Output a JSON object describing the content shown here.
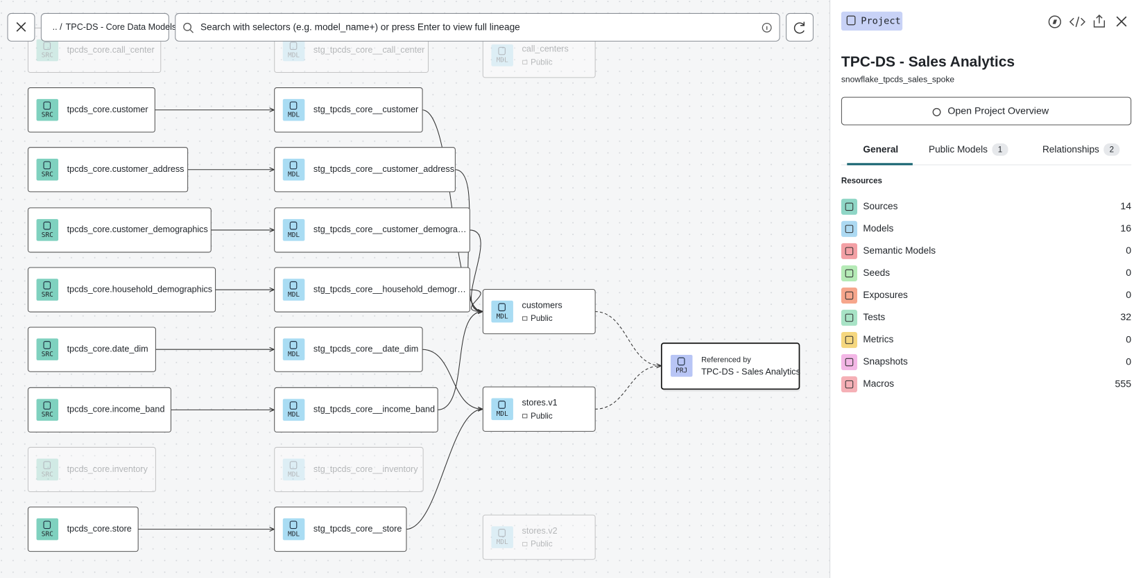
{
  "toolbar": {
    "breadcrumb_parent": "..",
    "breadcrumb_separator": "/",
    "breadcrumb_current": "TPC-DS - Core Data Models",
    "search_placeholder": "Search with selectors (e.g. model_name+) or press Enter to view full lineage"
  },
  "lineage": {
    "sources": [
      {
        "badge": "SRC",
        "label": "tpcds_core.call_center",
        "faded": true
      },
      {
        "badge": "SRC",
        "label": "tpcds_core.customer"
      },
      {
        "badge": "SRC",
        "label": "tpcds_core.customer_address"
      },
      {
        "badge": "SRC",
        "label": "tpcds_core.customer_demographics"
      },
      {
        "badge": "SRC",
        "label": "tpcds_core.household_demographics"
      },
      {
        "badge": "SRC",
        "label": "tpcds_core.date_dim"
      },
      {
        "badge": "SRC",
        "label": "tpcds_core.income_band"
      },
      {
        "badge": "SRC",
        "label": "tpcds_core.inventory",
        "faded": true
      },
      {
        "badge": "SRC",
        "label": "tpcds_core.store"
      }
    ],
    "staging": [
      {
        "badge": "MDL",
        "label": "stg_tpcds_core__call_center",
        "faded": true
      },
      {
        "badge": "MDL",
        "label": "stg_tpcds_core__customer"
      },
      {
        "badge": "MDL",
        "label": "stg_tpcds_core__customer_address"
      },
      {
        "badge": "MDL",
        "label": "stg_tpcds_core__customer_demogra…"
      },
      {
        "badge": "MDL",
        "label": "stg_tpcds_core__household_demogr…"
      },
      {
        "badge": "MDL",
        "label": "stg_tpcds_core__date_dim"
      },
      {
        "badge": "MDL",
        "label": "stg_tpcds_core__income_band"
      },
      {
        "badge": "MDL",
        "label": "stg_tpcds_core__inventory",
        "faded": true
      },
      {
        "badge": "MDL",
        "label": "stg_tpcds_core__store"
      }
    ],
    "models": [
      {
        "badge": "MDL",
        "label": "call_centers",
        "access": "Public",
        "faded": true
      },
      {
        "badge": "MDL",
        "label": "customers",
        "access": "Public"
      },
      {
        "badge": "MDL",
        "label": "stores.v1",
        "access": "Public"
      },
      {
        "badge": "MDL",
        "label": "stores.v2",
        "access": "Public",
        "faded": true
      }
    ],
    "project_node": {
      "badge": "PRJ",
      "caption": "Referenced by",
      "label": "TPC-DS - Sales Analytics"
    }
  },
  "panel": {
    "chip": "Project",
    "title": "TPC-DS - Sales Analytics",
    "subtitle": "snowflake_tpcds_sales_spoke",
    "button": "Open Project Overview",
    "tabs": [
      {
        "label": "General",
        "active": true
      },
      {
        "label": "Public Models",
        "count": 1
      },
      {
        "label": "Relationships",
        "count": 2
      }
    ],
    "resources_heading": "Resources",
    "resources": [
      {
        "name": "Sources",
        "count": 14
      },
      {
        "name": "Models",
        "count": 16
      },
      {
        "name": "Semantic Models",
        "count": 0
      },
      {
        "name": "Seeds",
        "count": 0
      },
      {
        "name": "Exposures",
        "count": 0
      },
      {
        "name": "Tests",
        "count": 32
      },
      {
        "name": "Metrics",
        "count": 0
      },
      {
        "name": "Snapshots",
        "count": 0
      },
      {
        "name": "Macros",
        "count": 555
      }
    ]
  }
}
